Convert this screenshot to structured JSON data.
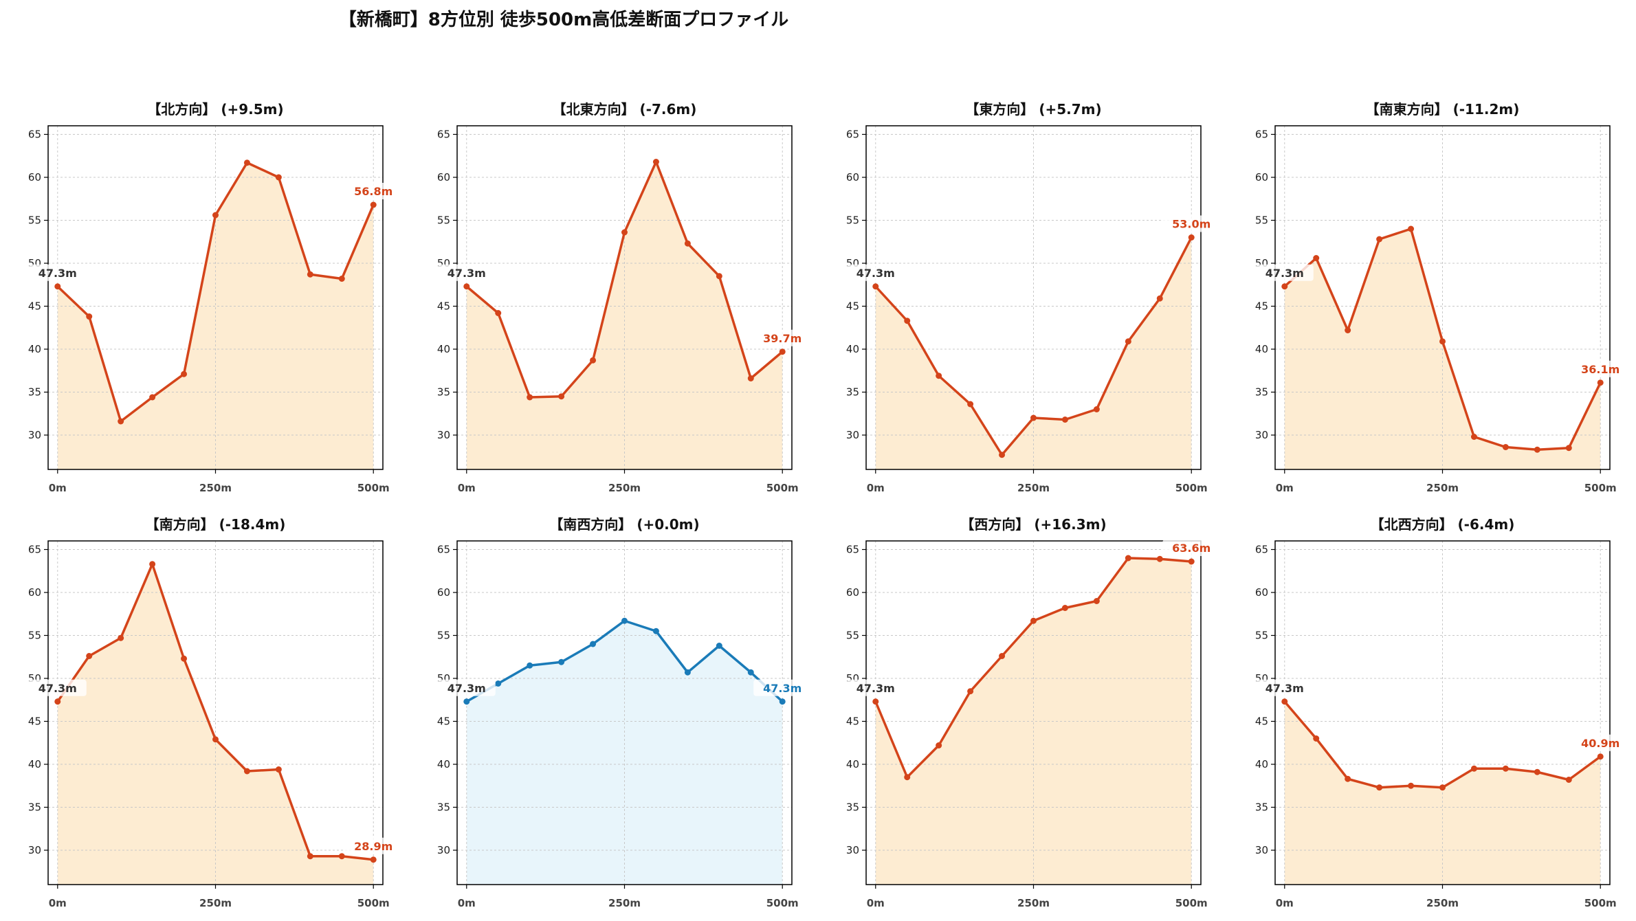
{
  "title": "【新橋町】8方位別 徒歩500m高低差断面プロファイル",
  "colors": {
    "up_line": "#d4441a",
    "up_fill": "#fdecd2",
    "flat_line": "#1a7bb8",
    "flat_fill": "#e8f5fb",
    "start_label": "#333333",
    "grid": "#c8c8c8"
  },
  "chart_data": {
    "type": "line",
    "layout": "2x4 small multiples",
    "x": [
      0,
      50,
      100,
      150,
      200,
      250,
      300,
      350,
      400,
      450,
      500
    ],
    "xticks": [
      0,
      250,
      500
    ],
    "xtick_labels": [
      "0m",
      "250m",
      "500m"
    ],
    "xlim": [
      -15,
      515
    ],
    "ylim": [
      26,
      66
    ],
    "yticks": [
      30,
      35,
      40,
      45,
      50,
      55,
      60,
      65
    ],
    "ytick_labels": [
      "30",
      "35",
      "40",
      "45",
      "50",
      "55",
      "60",
      "65"
    ],
    "grid": true,
    "filled_area": true,
    "panels": [
      {
        "title": "【北方向】 (+9.5m)",
        "values": [
          47.3,
          43.8,
          31.6,
          34.4,
          37.1,
          55.6,
          61.7,
          60.0,
          48.7,
          48.2,
          56.8
        ],
        "start_label": "47.3m",
        "end_label": "56.8m",
        "style": "up"
      },
      {
        "title": "【北東方向】 (-7.6m)",
        "values": [
          47.3,
          44.2,
          34.4,
          34.5,
          38.7,
          53.6,
          61.8,
          52.3,
          48.5,
          36.6,
          39.7
        ],
        "start_label": "47.3m",
        "end_label": "39.7m",
        "style": "up"
      },
      {
        "title": "【東方向】 (+5.7m)",
        "values": [
          47.3,
          43.3,
          36.9,
          33.6,
          27.7,
          32.0,
          31.8,
          33.0,
          40.9,
          45.9,
          53.0
        ],
        "start_label": "47.3m",
        "end_label": "53.0m",
        "style": "up"
      },
      {
        "title": "【南東方向】 (-11.2m)",
        "values": [
          47.3,
          50.6,
          42.2,
          52.8,
          54.0,
          40.9,
          29.8,
          28.6,
          28.3,
          28.5,
          36.1
        ],
        "start_label": "47.3m",
        "end_label": "36.1m",
        "style": "up"
      },
      {
        "title": "【南方向】 (-18.4m)",
        "values": [
          47.3,
          52.6,
          54.7,
          63.3,
          52.3,
          42.9,
          39.2,
          39.4,
          29.3,
          29.3,
          28.9
        ],
        "start_label": "47.3m",
        "end_label": "28.9m",
        "style": "up"
      },
      {
        "title": "【南西方向】 (+0.0m)",
        "values": [
          47.3,
          49.4,
          51.5,
          51.9,
          54.0,
          56.7,
          55.5,
          50.7,
          53.8,
          50.7,
          47.3
        ],
        "start_label": "47.3m",
        "end_label": "47.3m",
        "style": "flat"
      },
      {
        "title": "【西方向】 (+16.3m)",
        "values": [
          47.3,
          38.5,
          42.2,
          48.5,
          52.6,
          56.7,
          58.2,
          59.0,
          64.0,
          63.9,
          63.6
        ],
        "start_label": "47.3m",
        "end_label": "63.6m",
        "style": "up"
      },
      {
        "title": "【北西方向】 (-6.4m)",
        "values": [
          47.3,
          43.0,
          38.3,
          37.3,
          37.5,
          37.3,
          39.5,
          39.5,
          39.1,
          38.2,
          40.9
        ],
        "start_label": "47.3m",
        "end_label": "40.9m",
        "style": "up"
      }
    ]
  }
}
